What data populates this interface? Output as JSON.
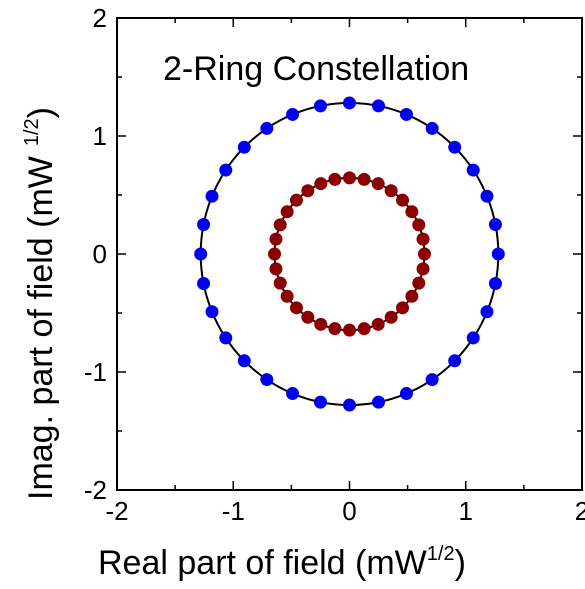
{
  "chart_data": {
    "type": "scatter",
    "title": "",
    "legend_label": "2-Ring Constellation",
    "legend_placement": "top",
    "xlabel": "Real part of field (mW",
    "xlabel_unit_sup": "1/2",
    "xlabel_close": ")",
    "ylabel": "Imag. part of field (mW",
    "ylabel_unit_sup": "1/2",
    "ylabel_close": ")",
    "xlim": [
      -2,
      2
    ],
    "ylim": [
      -2,
      2
    ],
    "xticks": [
      -2,
      -1,
      0,
      1,
      2
    ],
    "yticks": [
      -2,
      -1,
      0,
      1,
      2
    ],
    "xtick_labels": [
      "-2",
      "-1",
      "0",
      "1",
      "2"
    ],
    "ytick_labels": [
      "-2",
      "-1",
      "0",
      "1",
      "2"
    ],
    "grid": false,
    "series": [
      {
        "ring": "outer",
        "radius": 1.28,
        "num_points": 32,
        "color": "#0000ee",
        "circle_color": "#000000"
      },
      {
        "ring": "inner",
        "radius": 0.645,
        "num_points": 32,
        "color": "#8b0000",
        "circle_color": "#000000"
      }
    ]
  }
}
